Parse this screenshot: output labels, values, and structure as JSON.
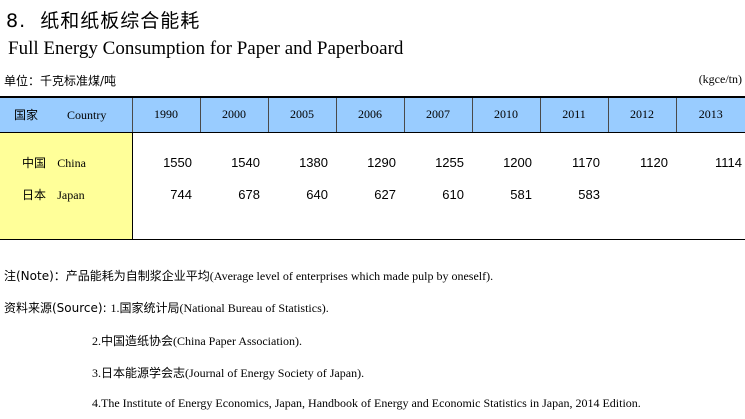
{
  "title": {
    "number": "8.",
    "cn": "纸和纸板综合能耗",
    "en": "Full Energy Consumption for Paper and Paperboard"
  },
  "unit": {
    "cn": "单位：千克标准煤/吨",
    "en": "(kgce/tn)"
  },
  "table": {
    "header": {
      "country_cn": "国家",
      "country_en": "Country",
      "years": [
        "1990",
        "2000",
        "2005",
        "2006",
        "2007",
        "2010",
        "2011",
        "2012",
        "2013"
      ]
    },
    "rows": [
      {
        "cn": "中国",
        "en": "China",
        "values": [
          "1550",
          "1540",
          "1380",
          "1290",
          "1255",
          "1200",
          "1170",
          "1120",
          "1114"
        ]
      },
      {
        "cn": "日本",
        "en": "Japan",
        "values": [
          "744",
          "678",
          "640",
          "627",
          "610",
          "581",
          "583",
          "",
          ""
        ]
      }
    ]
  },
  "notes": {
    "note_label": "注(Note)：",
    "note_cn": "产品能耗为自制浆企业平均",
    "note_en": "(Average level of enterprises which made pulp by oneself).",
    "source_label": "资料来源(Source): ",
    "src1_num": "1.",
    "src1_cn": "国家统计局",
    "src1_en": "(National Bureau of Statistics).",
    "src2_num": "2.",
    "src2_cn": "中国造纸协会",
    "src2_en": "(China Paper Association).",
    "src3_num": "3.",
    "src3_cn": "日本能源学会志",
    "src3_en": "(Journal of Energy Society of Japan).",
    "src4": "4.The Institute of Energy Economics, Japan, Handbook of Energy and Economic Statistics in Japan, 2014 Edition."
  }
}
